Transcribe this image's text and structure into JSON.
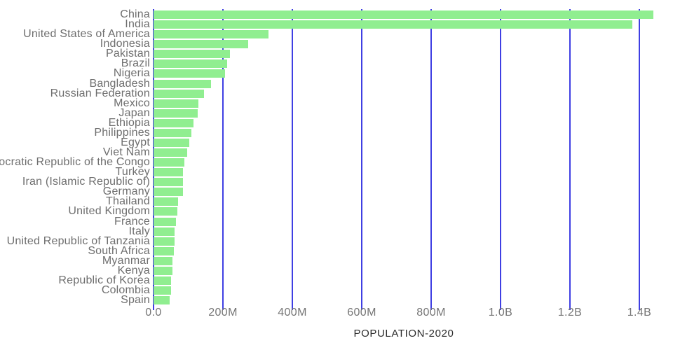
{
  "chart_data": {
    "type": "bar",
    "orientation": "horizontal",
    "title": "",
    "xlabel": "POPULATION-2020",
    "ylabel": "",
    "grid": "vertical",
    "legend": "none",
    "xlim_millions": [
      0,
      1483
    ],
    "categories": [
      "China",
      "India",
      "United States of America",
      "Indonesia",
      "Pakistan",
      "Brazil",
      "Nigeria",
      "Bangladesh",
      "Russian Federation",
      "Mexico",
      "Japan",
      "Ethiopia",
      "Philippines",
      "Egypt",
      "Viet Nam",
      "Democratic Republic of the Congo",
      "Turkey",
      "Iran (Islamic Republic of)",
      "Germany",
      "Thailand",
      "United Kingdom",
      "France",
      "Italy",
      "United Republic of Tanzania",
      "South Africa",
      "Myanmar",
      "Kenya",
      "Republic of Korea",
      "Colombia",
      "Spain"
    ],
    "values_millions": [
      1439.32,
      1380.0,
      331.0,
      273.52,
      220.89,
      212.56,
      206.14,
      164.69,
      145.93,
      128.93,
      126.48,
      114.96,
      109.58,
      102.33,
      97.34,
      89.56,
      84.34,
      83.99,
      83.78,
      69.8,
      67.89,
      65.27,
      60.46,
      59.73,
      59.31,
      54.41,
      53.77,
      51.27,
      50.88,
      46.75
    ],
    "x_ticks": [
      {
        "value_millions": 0,
        "label": "0.0"
      },
      {
        "value_millions": 200,
        "label": "200M"
      },
      {
        "value_millions": 400,
        "label": "400M"
      },
      {
        "value_millions": 600,
        "label": "600M"
      },
      {
        "value_millions": 800,
        "label": "800M"
      },
      {
        "value_millions": 1000,
        "label": "1.0B"
      },
      {
        "value_millions": 1200,
        "label": "1.2B"
      },
      {
        "value_millions": 1400,
        "label": "1.4B"
      }
    ],
    "colors": {
      "bar": "#90EE90",
      "gridline": "#3f3fe3",
      "category_label": "#6e6e6e",
      "tick_label": "#757575",
      "axis_title": "#2b2b2b",
      "background": "#ffffff"
    }
  }
}
